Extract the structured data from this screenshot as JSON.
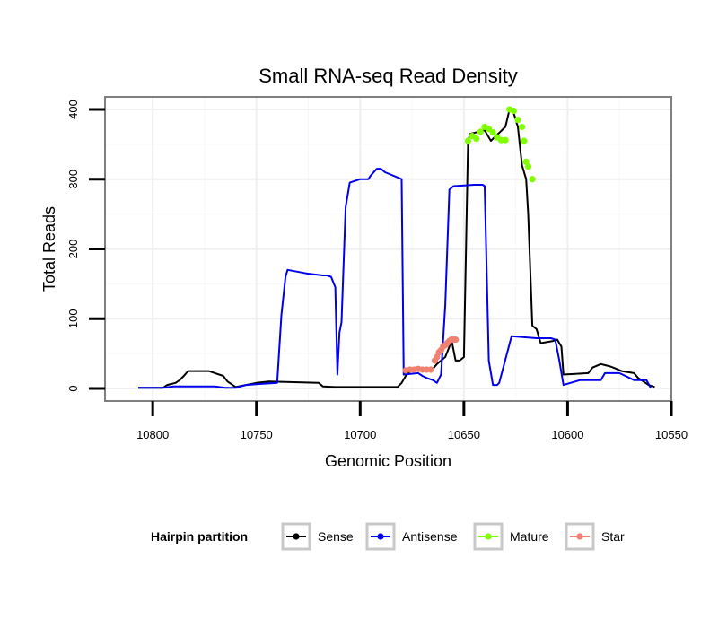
{
  "chart_data": {
    "type": "line",
    "title": "Small RNA-seq Read Density",
    "xlabel": "Genomic Position",
    "ylabel": "Total Reads",
    "xlim": [
      10823,
      10550
    ],
    "ylim": [
      -18,
      418
    ],
    "x_reversed": true,
    "x_ticks": [
      10800,
      10750,
      10700,
      10650,
      10600,
      10550
    ],
    "y_ticks": [
      0,
      100,
      200,
      300,
      400
    ],
    "grid": true,
    "legend": {
      "title": "Hairpin partition",
      "position": "bottom",
      "entries": [
        {
          "name": "Sense",
          "color": "#000000"
        },
        {
          "name": "Antisense",
          "color": "#0000ee"
        },
        {
          "name": "Mature",
          "color": "#7fff00"
        },
        {
          "name": "Star",
          "color": "#f08070"
        }
      ]
    },
    "series": [
      {
        "name": "Sense",
        "color": "#000000",
        "x": [
          10807,
          10795,
          10793,
          10789,
          10787,
          10785,
          10783,
          10773,
          10770,
          10766,
          10764,
          10760,
          10750,
          10744,
          10720,
          10718,
          10712,
          10682,
          10680,
          10678,
          10675,
          10665,
          10663,
          10661,
          10659,
          10657,
          10656,
          10654,
          10652,
          10650,
          10648,
          10647,
          10640,
          10637,
          10630,
          10628,
          10626,
          10624,
          10622,
          10620,
          10619,
          10617,
          10615,
          10613,
          10607,
          10605,
          10603,
          10602,
          10590,
          10588,
          10584,
          10580,
          10578,
          10574,
          10568,
          10566,
          10561,
          10558
        ],
        "y": [
          1,
          1,
          5,
          8,
          12,
          18,
          25,
          25,
          22,
          18,
          10,
          2,
          8,
          10,
          8,
          3,
          2,
          2,
          8,
          18,
          27,
          28,
          35,
          40,
          45,
          60,
          70,
          40,
          40,
          45,
          355,
          365,
          370,
          355,
          375,
          400,
          395,
          375,
          320,
          300,
          250,
          90,
          85,
          65,
          68,
          70,
          60,
          20,
          22,
          30,
          35,
          32,
          30,
          25,
          22,
          15,
          5,
          2
        ]
      },
      {
        "name": "Antisense",
        "color": "#0000ee",
        "x": [
          10807,
          10795,
          10790,
          10770,
          10765,
          10760,
          10755,
          10750,
          10740,
          10738,
          10736,
          10735,
          10726,
          10718,
          10716,
          10714,
          10712,
          10711,
          10710,
          10709,
          10707,
          10705,
          10700,
          10696,
          10695,
          10692,
          10690,
          10688,
          10680,
          10679,
          10672,
          10670,
          10668,
          10665,
          10663,
          10661,
          10659,
          10657,
          10655,
          10645,
          10641,
          10640,
          10638,
          10636,
          10634,
          10633,
          10627,
          10615,
          10608,
          10606,
          10604,
          10602,
          10594,
          10592,
          10590,
          10584,
          10582,
          10575,
          10568,
          10566,
          10562,
          10560
        ],
        "y": [
          1,
          1,
          3,
          3,
          1,
          1,
          5,
          6,
          8,
          105,
          160,
          170,
          165,
          162,
          162,
          160,
          145,
          20,
          80,
          95,
          260,
          295,
          300,
          300,
          305,
          315,
          315,
          310,
          300,
          20,
          22,
          18,
          15,
          12,
          8,
          20,
          120,
          285,
          290,
          292,
          292,
          290,
          40,
          5,
          5,
          8,
          75,
          72,
          72,
          70,
          40,
          5,
          12,
          12,
          12,
          12,
          22,
          22,
          12,
          12,
          12,
          1
        ]
      },
      {
        "name": "Mature",
        "color": "#7fff00",
        "x": [
          10648,
          10646,
          10644,
          10642,
          10640,
          10638,
          10636,
          10634,
          10632,
          10630,
          10628,
          10626,
          10624,
          10622,
          10621,
          10620,
          10619,
          10617
        ],
        "y": [
          355,
          362,
          358,
          368,
          375,
          372,
          367,
          360,
          356,
          356,
          400,
          398,
          385,
          375,
          355,
          325,
          318,
          300
        ]
      },
      {
        "name": "Star",
        "color": "#f08070",
        "x": [
          10678,
          10676,
          10674,
          10672,
          10670,
          10668,
          10666,
          10664,
          10663,
          10662,
          10661,
          10660,
          10659,
          10658,
          10657,
          10656,
          10655,
          10654
        ],
        "y": [
          26,
          27,
          27,
          28,
          27,
          27,
          27,
          40,
          45,
          52,
          55,
          60,
          62,
          65,
          68,
          70,
          70,
          70
        ]
      }
    ]
  }
}
